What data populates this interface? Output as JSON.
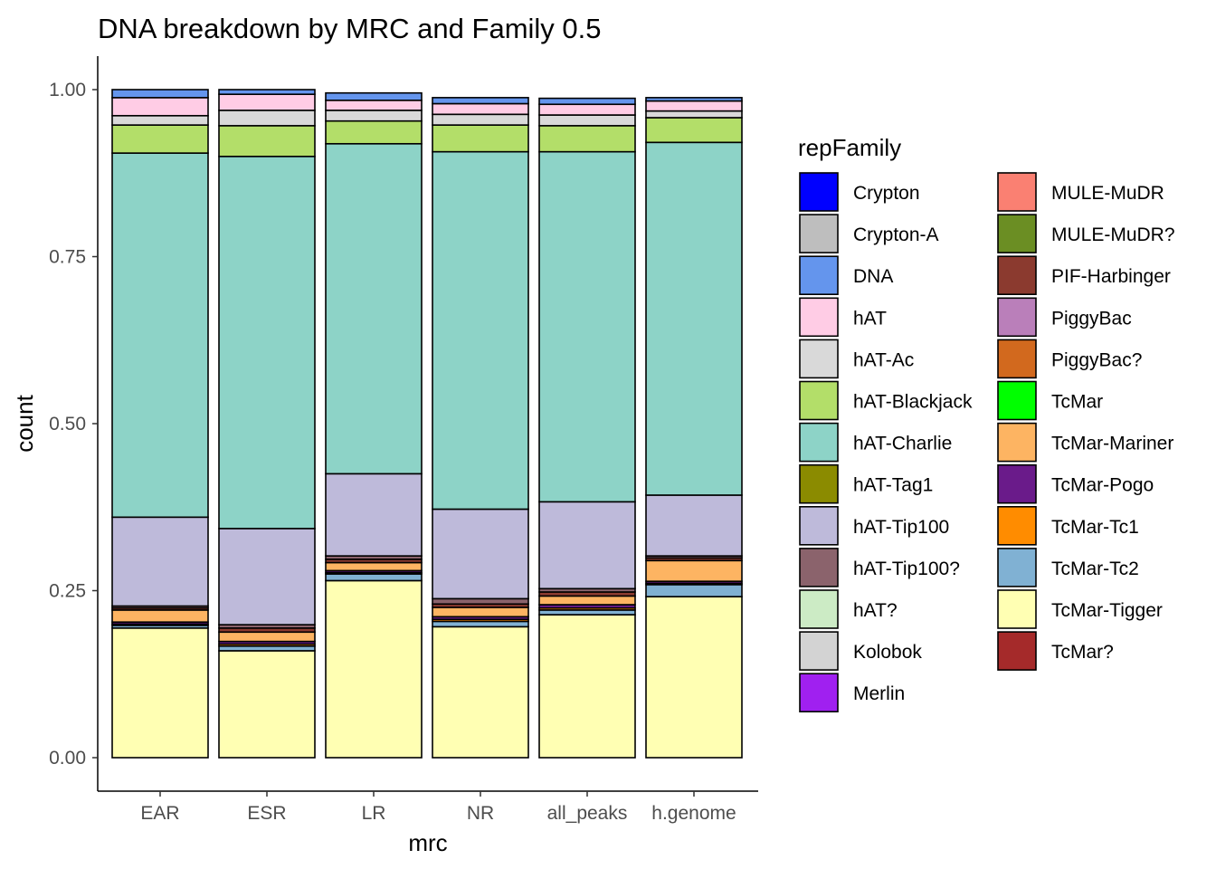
{
  "chart_data": {
    "type": "bar",
    "stacked": true,
    "title": "DNA breakdown by MRC and Family 0.5",
    "xlabel": "mrc",
    "ylabel": "count",
    "ylim": [
      0,
      1.05
    ],
    "yticks": [
      "0.00",
      "0.25",
      "0.50",
      "0.75",
      "1.00"
    ],
    "categories": [
      "EAR",
      "ESR",
      "LR",
      "NR",
      "all_peaks",
      "h.genome"
    ],
    "legend_title": "repFamily",
    "legend_position": "right",
    "grid": false,
    "series": [
      {
        "name": "Crypton",
        "color": "#0000FF",
        "values": [
          0,
          0,
          0,
          0,
          0,
          0
        ]
      },
      {
        "name": "Crypton-A",
        "color": "#BEBEBE",
        "values": [
          0,
          0,
          0,
          0,
          0,
          0
        ]
      },
      {
        "name": "DNA",
        "color": "#6495ED",
        "values": [
          0.012,
          0.007,
          0.011,
          0.009,
          0.009,
          0.005
        ]
      },
      {
        "name": "hAT",
        "color": "#FFCCE5",
        "values": [
          0.027,
          0.024,
          0.015,
          0.016,
          0.016,
          0.015
        ]
      },
      {
        "name": "hAT-Ac",
        "color": "#D9D9D9",
        "values": [
          0.014,
          0.023,
          0.016,
          0.016,
          0.016,
          0.01
        ]
      },
      {
        "name": "hAT-Blackjack",
        "color": "#B3DE69",
        "values": [
          0.042,
          0.046,
          0.034,
          0.04,
          0.039,
          0.037
        ]
      },
      {
        "name": "hAT-Charlie",
        "color": "#8DD3C7",
        "values": [
          0.545,
          0.557,
          0.494,
          0.535,
          0.524,
          0.528
        ]
      },
      {
        "name": "hAT-Tag1",
        "color": "#8B8B00",
        "values": [
          0,
          0,
          0,
          0,
          0,
          0
        ]
      },
      {
        "name": "hAT-Tip100",
        "color": "#BEBADA",
        "values": [
          0.133,
          0.144,
          0.123,
          0.134,
          0.13,
          0.091
        ]
      },
      {
        "name": "hAT-Tip100?",
        "color": "#8B636C",
        "values": [
          0.003,
          0.005,
          0.005,
          0.008,
          0.005,
          0.003
        ]
      },
      {
        "name": "hAT?",
        "color": "#CCEBC5",
        "values": [
          0,
          0,
          0,
          0,
          0,
          0
        ]
      },
      {
        "name": "Kolobok",
        "color": "#D3D3D3",
        "values": [
          0,
          0,
          0,
          0,
          0,
          0
        ]
      },
      {
        "name": "Merlin",
        "color": "#A020F0",
        "values": [
          0,
          0,
          0,
          0,
          0,
          0
        ]
      },
      {
        "name": "MULE-MuDR",
        "color": "#FA8072",
        "values": [
          0,
          0,
          0,
          0,
          0,
          0
        ]
      },
      {
        "name": "MULE-MuDR?",
        "color": "#6B8E23",
        "values": [
          0,
          0,
          0,
          0,
          0,
          0
        ]
      },
      {
        "name": "PIF-Harbinger",
        "color": "#8B3A2F",
        "values": [
          0.003,
          0.006,
          0.005,
          0.005,
          0.006,
          0.004
        ]
      },
      {
        "name": "PiggyBac",
        "color": "#BA7FBA",
        "values": [
          0,
          0,
          0,
          0,
          0,
          0
        ]
      },
      {
        "name": "PiggyBac?",
        "color": "#D2691E",
        "values": [
          0,
          0,
          0,
          0,
          0,
          0
        ]
      },
      {
        "name": "TcMar",
        "color": "#00FF00",
        "values": [
          0,
          0,
          0,
          0,
          0,
          0
        ]
      },
      {
        "name": "TcMar-Mariner",
        "color": "#FDB462",
        "values": [
          0.018,
          0.014,
          0.012,
          0.014,
          0.013,
          0.031
        ]
      },
      {
        "name": "TcMar-Pogo",
        "color": "#6A1B8A",
        "values": [
          0.003,
          0.004,
          0.003,
          0.004,
          0.005,
          0.003
        ]
      },
      {
        "name": "TcMar-Tc1",
        "color": "#FF8C00",
        "values": [
          0.002,
          0.003,
          0.002,
          0.003,
          0.003,
          0.002
        ]
      },
      {
        "name": "TcMar-Tc2",
        "color": "#80B1D3",
        "values": [
          0.004,
          0.007,
          0.01,
          0.008,
          0.007,
          0.018
        ]
      },
      {
        "name": "TcMar-Tigger",
        "color": "#FFFFB3",
        "values": [
          0.194,
          0.16,
          0.265,
          0.196,
          0.214,
          0.241
        ]
      },
      {
        "name": "TcMar?",
        "color": "#A52A2A",
        "values": [
          0,
          0,
          0,
          0,
          0,
          0
        ]
      }
    ]
  }
}
